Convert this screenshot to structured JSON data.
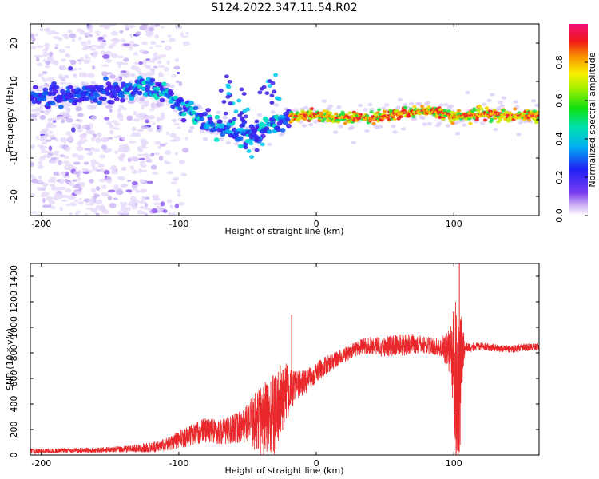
{
  "title": "S124.2022.347.11.54.R02",
  "colors": {
    "snr_line": "#e8282a",
    "background": "#ffffff",
    "axes": "#000000"
  },
  "chart_data": [
    {
      "type": "heatmap",
      "xlabel": "Height of straight line (km)",
      "ylabel": "Frequency (Hz)",
      "xlim": [
        -208,
        162
      ],
      "ylim": [
        -25,
        25
      ],
      "xticks": [
        -200,
        -100,
        0,
        100
      ],
      "yticks": [
        -20,
        -10,
        0,
        10,
        20
      ],
      "colormap": "rainbow (white → purple → blue → cyan → green → yellow → orange → red → magenta)",
      "colorbar": {
        "label": "Normalized spectral amplitude",
        "range": [
          0.0,
          1.0
        ],
        "ticks": [
          0.0,
          0.2,
          0.4,
          0.6,
          0.8
        ]
      },
      "ridge": [
        {
          "x": -200,
          "f": 6
        },
        {
          "x": -180,
          "f": 7
        },
        {
          "x": -160,
          "f": 7
        },
        {
          "x": -140,
          "f": 8
        },
        {
          "x": -120,
          "f": 8
        },
        {
          "x": -110,
          "f": 7
        },
        {
          "x": -100,
          "f": 4
        },
        {
          "x": -90,
          "f": 2
        },
        {
          "x": -80,
          "f": -1
        },
        {
          "x": -70,
          "f": -2
        },
        {
          "x": -60,
          "f": -3
        },
        {
          "x": -50,
          "f": -5
        },
        {
          "x": -40,
          "f": -3
        },
        {
          "x": -30,
          "f": -1
        },
        {
          "x": -20,
          "f": 1
        },
        {
          "x": -10,
          "f": 1
        },
        {
          "x": 0,
          "f": 1
        },
        {
          "x": 20,
          "f": 0.5
        },
        {
          "x": 40,
          "f": 0.5
        },
        {
          "x": 60,
          "f": 1.5
        },
        {
          "x": 80,
          "f": 2.5
        },
        {
          "x": 95,
          "f": 1.5
        },
        {
          "x": 100,
          "f": 0.5
        },
        {
          "x": 120,
          "f": 1.5
        },
        {
          "x": 162,
          "f": 1
        }
      ],
      "secondary_branch": [
        {
          "x": -65,
          "f": 5
        },
        {
          "x": -55,
          "f": 2
        },
        {
          "x": -45,
          "f": -4
        },
        {
          "x": -35,
          "f": 9
        }
      ],
      "noise_region": {
        "x_from": -208,
        "x_to": -115,
        "f_from": -25,
        "f_to": 25
      }
    },
    {
      "type": "line",
      "xlabel": "Height of straight line (km)",
      "ylabel": "SNR (10 * v/v)",
      "xlim": [
        -208,
        162
      ],
      "ylim": [
        0,
        1500
      ],
      "xticks": [
        -200,
        -100,
        0,
        100
      ],
      "yticks": [
        0,
        200,
        400,
        600,
        800,
        1000,
        1200,
        1400
      ],
      "series": [
        {
          "envelope_x": [
            -208,
            -180,
            -160,
            -140,
            -120,
            -110,
            -100,
            -90,
            -80,
            -70,
            -60,
            -50,
            -40,
            -30,
            -25,
            -20,
            -15,
            -10,
            -5,
            0,
            10,
            20,
            30,
            40,
            50,
            60,
            70,
            80,
            90,
            98,
            100,
            102,
            104,
            106,
            108,
            110,
            120,
            130,
            140,
            150,
            162
          ],
          "envelope_mean": [
            30,
            35,
            40,
            45,
            60,
            80,
            120,
            160,
            200,
            180,
            200,
            250,
            280,
            320,
            450,
            500,
            550,
            560,
            600,
            650,
            720,
            780,
            840,
            860,
            850,
            860,
            870,
            860,
            840,
            820,
            700,
            500,
            600,
            800,
            840,
            840,
            850,
            840,
            830,
            840,
            850
          ],
          "envelope_spread": [
            20,
            20,
            20,
            25,
            40,
            50,
            70,
            90,
            100,
            100,
            120,
            150,
            300,
            350,
            300,
            200,
            120,
            100,
            90,
            80,
            70,
            60,
            60,
            70,
            80,
            90,
            80,
            70,
            70,
            200,
            500,
            700,
            700,
            300,
            40,
            40,
            30,
            30,
            30,
            30,
            30
          ],
          "peaks": [
            {
              "x": -18,
              "y": 1100
            },
            {
              "x": 104,
              "y": 1500
            },
            {
              "x": 103,
              "y": 240
            }
          ]
        }
      ]
    }
  ]
}
